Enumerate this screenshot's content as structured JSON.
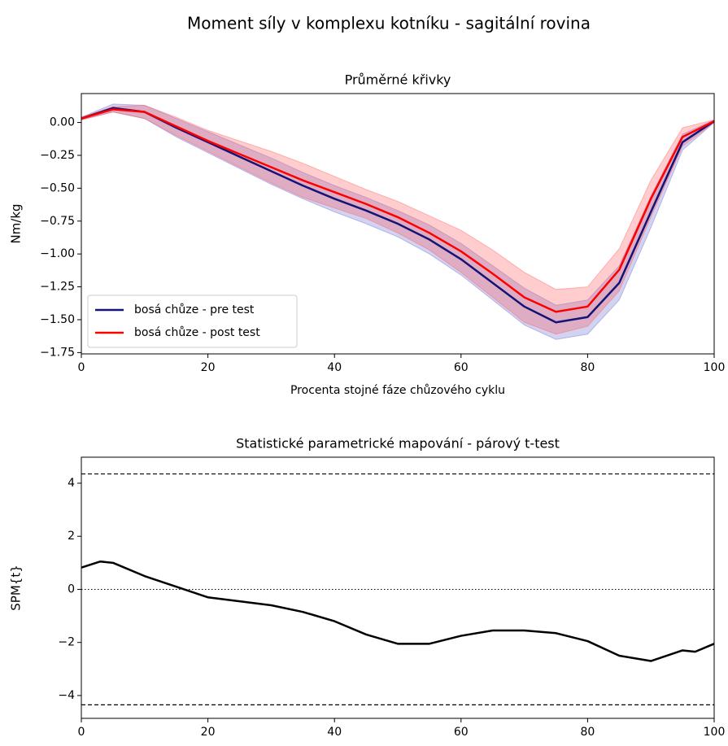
{
  "title": "Moment síly v komplexu kotníku - sagitální rovina",
  "chart_data": [
    {
      "type": "line",
      "title": "Průměrné křivky",
      "xlabel": "Procenta stojné fáze chůzového cyklu",
      "ylabel": "Nm/kg",
      "x": [
        0,
        5,
        10,
        15,
        20,
        25,
        30,
        35,
        40,
        45,
        50,
        55,
        60,
        65,
        70,
        75,
        80,
        85,
        90,
        95,
        100
      ],
      "series": [
        {
          "name": "bosá chůze - pre test",
          "color": "#141478",
          "band_color": "#6a6ad0",
          "values": [
            0.03,
            0.11,
            0.08,
            -0.04,
            -0.15,
            -0.26,
            -0.37,
            -0.48,
            -0.58,
            -0.67,
            -0.77,
            -0.89,
            -1.04,
            -1.22,
            -1.4,
            -1.52,
            -1.48,
            -1.22,
            -0.68,
            -0.15,
            0.01
          ],
          "lower": [
            0.02,
            0.08,
            0.03,
            -0.11,
            -0.23,
            -0.35,
            -0.47,
            -0.58,
            -0.68,
            -0.77,
            -0.87,
            -1.0,
            -1.16,
            -1.35,
            -1.54,
            -1.65,
            -1.61,
            -1.35,
            -0.8,
            -0.21,
            0.0
          ],
          "upper": [
            0.04,
            0.14,
            0.13,
            0.03,
            -0.07,
            -0.17,
            -0.27,
            -0.38,
            -0.48,
            -0.57,
            -0.67,
            -0.78,
            -0.92,
            -1.09,
            -1.26,
            -1.39,
            -1.35,
            -1.09,
            -0.56,
            -0.09,
            0.02
          ]
        },
        {
          "name": "bosá chůze - post test",
          "color": "#ff0000",
          "band_color": "#ff5a5a",
          "values": [
            0.03,
            0.1,
            0.08,
            -0.03,
            -0.14,
            -0.24,
            -0.34,
            -0.44,
            -0.53,
            -0.62,
            -0.72,
            -0.84,
            -0.98,
            -1.15,
            -1.33,
            -1.44,
            -1.4,
            -1.12,
            -0.58,
            -0.11,
            0.01
          ],
          "lower": [
            0.02,
            0.08,
            0.03,
            -0.1,
            -0.22,
            -0.34,
            -0.46,
            -0.57,
            -0.65,
            -0.73,
            -0.84,
            -0.97,
            -1.14,
            -1.33,
            -1.52,
            -1.61,
            -1.55,
            -1.28,
            -0.72,
            -0.18,
            0.0
          ],
          "upper": [
            0.04,
            0.12,
            0.13,
            0.04,
            -0.06,
            -0.14,
            -0.22,
            -0.31,
            -0.41,
            -0.51,
            -0.6,
            -0.71,
            -0.82,
            -0.97,
            -1.14,
            -1.27,
            -1.25,
            -0.96,
            -0.44,
            -0.04,
            0.02
          ]
        }
      ],
      "xlim": [
        0,
        100
      ],
      "ylim": [
        -1.76,
        0.22
      ],
      "xticks": [
        0,
        20,
        40,
        60,
        80,
        100
      ],
      "yticks": [
        {
          "value": 0,
          "label": "0.00"
        },
        {
          "value": -0.25,
          "label": "−0.25"
        },
        {
          "value": -0.5,
          "label": "−0.50"
        },
        {
          "value": -0.75,
          "label": "−0.75"
        },
        {
          "value": -1,
          "label": "−1.00"
        },
        {
          "value": -1.25,
          "label": "−1.25"
        },
        {
          "value": -1.5,
          "label": "−1.50"
        },
        {
          "value": -1.75,
          "label": "−1.75"
        }
      ],
      "legend": "lower left"
    },
    {
      "type": "line",
      "title": "Statistické parametrické mapování - párový t-test",
      "ylabel": "SPM{t}",
      "x": [
        0,
        3,
        5,
        10,
        15,
        20,
        25,
        30,
        35,
        40,
        45,
        50,
        55,
        60,
        65,
        70,
        75,
        80,
        85,
        90,
        95,
        97,
        100
      ],
      "series": [
        {
          "color": "#000000",
          "values": [
            0.82,
            1.05,
            1.0,
            0.5,
            0.1,
            -0.3,
            -0.45,
            -0.6,
            -0.85,
            -1.2,
            -1.7,
            -2.05,
            -2.05,
            -1.75,
            -1.55,
            -1.55,
            -1.65,
            -1.95,
            -2.5,
            -2.7,
            -2.3,
            -2.35,
            -2.05
          ]
        }
      ],
      "thresholds": [
        4.35,
        -4.35
      ],
      "reference_line": 0,
      "xlim": [
        0,
        100
      ],
      "ylim": [
        -4.86,
        4.98
      ],
      "xticks": [
        0,
        20,
        40,
        60,
        80,
        100
      ],
      "yticks": [
        {
          "value": -4,
          "label": "−4"
        },
        {
          "value": -2,
          "label": "−2"
        },
        0,
        2,
        4
      ]
    }
  ]
}
